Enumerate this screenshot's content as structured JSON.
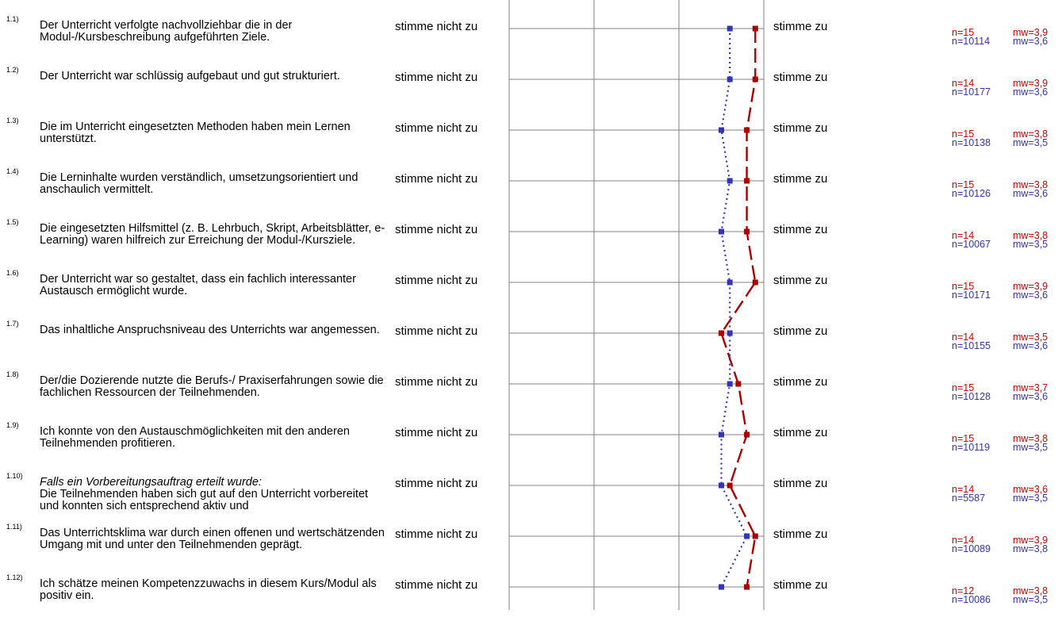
{
  "scale": {
    "left_label": "stimme nicht zu",
    "right_label": "stimme zu"
  },
  "colors": {
    "course": "#aa0000",
    "reference": "#3333bb",
    "grid": "#808080"
  },
  "chart_data": {
    "type": "line",
    "scale_min": 1,
    "scale_max": 4,
    "series": [
      {
        "name": "",
        "style": "dashed",
        "values": [
          3.9,
          3.9,
          3.8,
          3.8,
          3.8,
          3.9,
          3.5,
          3.7,
          3.8,
          3.6,
          3.9,
          3.8
        ]
      },
      {
        "name": "",
        "style": "dotted",
        "values": [
          3.6,
          3.6,
          3.5,
          3.6,
          3.5,
          3.6,
          3.6,
          3.6,
          3.5,
          3.5,
          3.8,
          3.5
        ]
      }
    ]
  },
  "items": [
    {
      "num": "1.1)",
      "intro": "",
      "text": "Der Unterricht verfolgte nachvollziehbar die in der Modul-/Kursbeschreibung aufgeführten Ziele.",
      "n_a": "n=15",
      "mw_a": "mw=3,9",
      "n_b": "n=10114",
      "mw_b": "mw=3,6"
    },
    {
      "num": "1.2)",
      "intro": "",
      "text": "Der Unterricht war schlüssig aufgebaut und gut strukturiert.",
      "n_a": "n=14",
      "mw_a": "mw=3,9",
      "n_b": "n=10177",
      "mw_b": "mw=3,6"
    },
    {
      "num": "1.3)",
      "intro": "",
      "text": "Die im Unterricht eingesetzten Methoden haben mein Lernen unterstützt.",
      "n_a": "n=15",
      "mw_a": "mw=3,8",
      "n_b": "n=10138",
      "mw_b": "mw=3,5"
    },
    {
      "num": "1.4)",
      "intro": "",
      "text": "Die Lerninhalte wurden verständlich, umsetzungsorientiert und anschaulich vermittelt.",
      "n_a": "n=15",
      "mw_a": "mw=3,8",
      "n_b": "n=10126",
      "mw_b": "mw=3,6"
    },
    {
      "num": "1.5)",
      "intro": "",
      "text": "Die eingesetzten Hilfsmittel (z. B. Lehrbuch, Skript, Arbeitsblätter, e-Learning) waren hilfreich zur Erreichung der Modul-/Kursziele.",
      "n_a": "n=14",
      "mw_a": "mw=3,8",
      "n_b": "n=10067",
      "mw_b": "mw=3,5"
    },
    {
      "num": "1.6)",
      "intro": "",
      "text": "Der Unterricht war so gestaltet, dass ein fachlich interessanter Austausch ermöglicht wurde.",
      "n_a": "n=15",
      "mw_a": "mw=3,9",
      "n_b": "n=10171",
      "mw_b": "mw=3,6"
    },
    {
      "num": "1.7)",
      "intro": "",
      "text": "Das inhaltliche Anspruchsniveau des Unterrichts war angemessen.",
      "n_a": "n=14",
      "mw_a": "mw=3,5",
      "n_b": "n=10155",
      "mw_b": "mw=3,6"
    },
    {
      "num": "1.8)",
      "intro": "",
      "text": "Der/die Dozierende nutzte die Berufs-/ Praxiserfahrungen sowie die fachlichen Ressourcen der Teilnehmenden.",
      "n_a": "n=15",
      "mw_a": "mw=3,7",
      "n_b": "n=10128",
      "mw_b": "mw=3,6"
    },
    {
      "num": "1.9)",
      "intro": "",
      "text": "Ich konnte von den Austauschmöglichkeiten mit den anderen Teilnehmenden profitieren.",
      "n_a": "n=15",
      "mw_a": "mw=3,8",
      "n_b": "n=10119",
      "mw_b": "mw=3,5"
    },
    {
      "num": "1.10)",
      "intro": "Falls ein Vorbereitungsauftrag erteilt wurde:",
      "text": "Die Teilnehmenden haben sich gut auf den Unterricht vorbereitet und konnten sich entsprechend aktiv und",
      "n_a": "n=14",
      "mw_a": "mw=3,6",
      "n_b": "n=5587",
      "mw_b": "mw=3,5"
    },
    {
      "num": "1.11)",
      "intro": "",
      "text": "Das Unterrichtsklima war durch einen offenen und wertschätzenden Umgang mit und unter den Teilnehmenden geprägt.",
      "n_a": "n=14",
      "mw_a": "mw=3,9",
      "n_b": "n=10089",
      "mw_b": "mw=3,8"
    },
    {
      "num": "1.12)",
      "intro": "",
      "text": "Ich schätze meinen Kompetenzzuwachs in diesem Kurs/Modul als positiv ein.",
      "n_a": "n=12",
      "mw_a": "mw=3,8",
      "n_b": "n=10086",
      "mw_b": "mw=3,5"
    }
  ]
}
